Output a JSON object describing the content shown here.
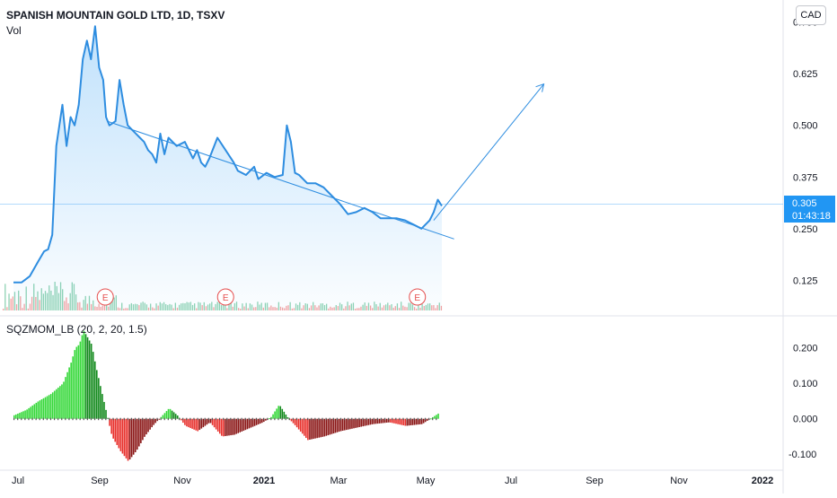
{
  "header": {
    "title": "SPANISH MOUNTAIN GOLD LTD, 1D, TSXV",
    "vol_label": "Vol",
    "currency": "CAD",
    "indicator_label": "SQZMOM_LB (20, 2, 20, 1.5)"
  },
  "last_price": {
    "value": "0.305",
    "countdown": "01:43:18"
  },
  "colors": {
    "line": "#2e8de0",
    "area": "#2196f3",
    "hist_bright_green": "#36d83a",
    "hist_dark_green": "#138a1d",
    "hist_red": "#e8302c",
    "hist_dark_red": "#8a1515",
    "vol_green": "#8fd3b4",
    "vol_red": "#f3a3a3",
    "earnings": "#e54e4e",
    "zero_cross": "#555555",
    "price_tag": "#2196f3"
  },
  "chart_data": [
    {
      "type": "line",
      "x_ticks": [
        "Jul",
        "Sep",
        "Nov",
        "2021",
        "Mar",
        "May",
        "Jul",
        "Sep",
        "Nov",
        "2022"
      ],
      "y_ticks": [
        "0.750",
        "0.625",
        "0.500",
        "0.375",
        "0.250",
        "0.125"
      ],
      "ylim": [
        0.065,
        0.76
      ],
      "xlim": [
        0,
        100
      ],
      "x": [
        0,
        2,
        4,
        6,
        7.5,
        8.5,
        9.5,
        10.5,
        12,
        13,
        14,
        15,
        16,
        17,
        18,
        19,
        20,
        21,
        22,
        22.7,
        23.5,
        25,
        26,
        27,
        28,
        29,
        30,
        31,
        32,
        33,
        34,
        35,
        36,
        37,
        38,
        40,
        42,
        44,
        45,
        46,
        47,
        48,
        50,
        52,
        54,
        55,
        57,
        59,
        60,
        62,
        64,
        66,
        67,
        68,
        69,
        70,
        72,
        74,
        76,
        78,
        80,
        82,
        84,
        86,
        88,
        90,
        92,
        94,
        96,
        98,
        100,
        102,
        103,
        104,
        105
      ],
      "y": [
        0.12,
        0.12,
        0.135,
        0.17,
        0.195,
        0.2,
        0.235,
        0.45,
        0.55,
        0.45,
        0.52,
        0.5,
        0.55,
        0.66,
        0.705,
        0.66,
        0.74,
        0.64,
        0.61,
        0.52,
        0.5,
        0.51,
        0.61,
        0.55,
        0.5,
        0.49,
        0.48,
        0.47,
        0.46,
        0.44,
        0.43,
        0.41,
        0.48,
        0.43,
        0.47,
        0.45,
        0.46,
        0.42,
        0.44,
        0.41,
        0.4,
        0.42,
        0.47,
        0.44,
        0.41,
        0.39,
        0.38,
        0.4,
        0.37,
        0.385,
        0.375,
        0.38,
        0.5,
        0.46,
        0.385,
        0.38,
        0.36,
        0.36,
        0.35,
        0.33,
        0.31,
        0.285,
        0.29,
        0.3,
        0.29,
        0.275,
        0.275,
        0.275,
        0.27,
        0.26,
        0.25,
        0.27,
        0.29,
        0.32,
        0.305
      ],
      "trendlines": [
        {
          "x": [
            23,
            108
          ],
          "y": [
            0.51,
            0.225
          ]
        },
        {
          "x": [
            103,
            130
          ],
          "y": [
            0.27,
            0.6
          ]
        }
      ],
      "earnings_markers": [
        {
          "x": 22.5,
          "label": "E"
        },
        {
          "x": 52,
          "label": "E"
        },
        {
          "x": 99,
          "label": "E"
        }
      ]
    },
    {
      "type": "bar",
      "title": "SQZMOM_LB (20, 2, 20, 1.5)",
      "y_ticks": [
        "0.200",
        "0.100",
        "0.000",
        "-0.100"
      ],
      "ylim": [
        -0.14,
        0.25
      ],
      "x": [
        0,
        3,
        6,
        9,
        12,
        14,
        15,
        16,
        17,
        18,
        19,
        20,
        22,
        24,
        26,
        28,
        30,
        32,
        34,
        36,
        38,
        40,
        42,
        45,
        48,
        51,
        54,
        58,
        61,
        63,
        65,
        67,
        69,
        72,
        76,
        80,
        84,
        88,
        92,
        96,
        100,
        104
      ],
      "values": [
        0.01,
        0.025,
        0.05,
        0.07,
        0.1,
        0.16,
        0.2,
        0.21,
        0.25,
        0.23,
        0.21,
        0.15,
        0.05,
        -0.05,
        -0.09,
        -0.12,
        -0.09,
        -0.05,
        -0.02,
        0.005,
        0.03,
        0.01,
        -0.02,
        -0.035,
        -0.01,
        -0.05,
        -0.045,
        -0.025,
        -0.01,
        0.005,
        0.04,
        0.005,
        -0.02,
        -0.06,
        -0.05,
        -0.035,
        -0.025,
        -0.015,
        -0.01,
        -0.02,
        -0.015,
        0.015
      ]
    }
  ]
}
